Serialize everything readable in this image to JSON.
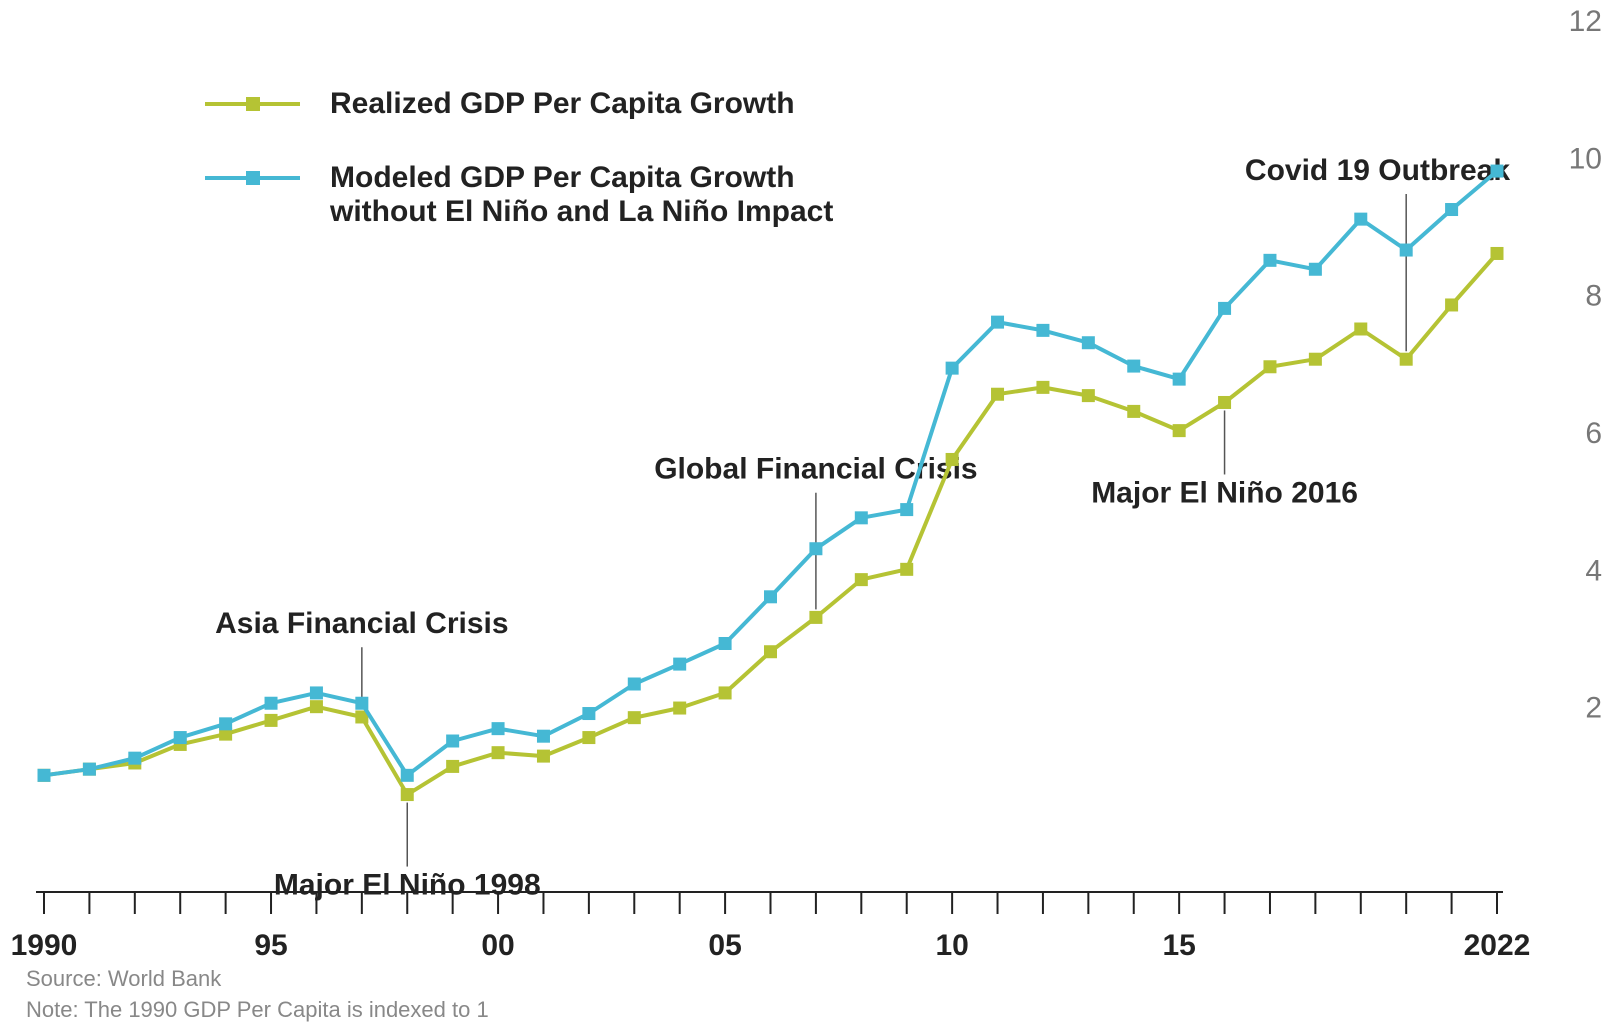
{
  "chart_data": {
    "type": "line",
    "x": [
      1990,
      1991,
      1992,
      1993,
      1994,
      1995,
      1996,
      1997,
      1998,
      1999,
      2000,
      2001,
      2002,
      2003,
      2004,
      2005,
      2006,
      2007,
      2008,
      2009,
      2010,
      2011,
      2012,
      2013,
      2014,
      2015,
      2016,
      2017,
      2018,
      2019,
      2020,
      2021,
      2022
    ],
    "series": [
      {
        "name": "Realized GDP Per Capita Growth",
        "color": "#b5c334",
        "values": [
          1.0,
          1.09,
          1.18,
          1.45,
          1.6,
          1.8,
          2.0,
          1.85,
          0.72,
          1.13,
          1.33,
          1.28,
          1.55,
          1.84,
          1.98,
          2.2,
          2.8,
          3.3,
          3.85,
          4.0,
          5.6,
          6.55,
          6.65,
          6.53,
          6.3,
          6.02,
          6.43,
          6.95,
          7.06,
          7.5,
          7.06,
          7.85,
          8.6
        ]
      },
      {
        "name": "Modeled GDP Per Capita Growth without El Niño and La Niño Impact",
        "color": "#45b8d4",
        "values": [
          1.0,
          1.09,
          1.25,
          1.55,
          1.75,
          2.05,
          2.2,
          2.05,
          1.0,
          1.5,
          1.68,
          1.57,
          1.9,
          2.33,
          2.62,
          2.92,
          3.6,
          4.3,
          4.75,
          4.87,
          6.93,
          7.6,
          7.48,
          7.3,
          6.96,
          6.77,
          7.8,
          8.5,
          8.37,
          9.1,
          8.65,
          9.24,
          9.8
        ]
      }
    ],
    "legend": [
      {
        "label": "Realized GDP Per Capita Growth",
        "color": "#b5c334"
      },
      {
        "label_line1": "Modeled GDP Per Capita Growth",
        "label_line2": "without El Niño and La Niño Impact",
        "color": "#45b8d4"
      }
    ],
    "legend_position": "top-left",
    "ylim": [
      0,
      12
    ],
    "xlim": [
      1990,
      2022
    ],
    "y_ticks": [
      "12",
      "10",
      "8",
      "6",
      "4",
      "2"
    ],
    "x_tick_labels": [
      {
        "year": 1990,
        "label": "1990"
      },
      {
        "year": 1995,
        "label": "95"
      },
      {
        "year": 2000,
        "label": "00"
      },
      {
        "year": 2005,
        "label": "05"
      },
      {
        "year": 2010,
        "label": "10"
      },
      {
        "year": 2015,
        "label": "15"
      },
      {
        "year": 2022,
        "label": "2022"
      }
    ],
    "annotations": [
      {
        "text": "Asia Financial Crisis",
        "year": 1997,
        "side": "above"
      },
      {
        "text": "Major El Niño 1998",
        "year": 1998,
        "side": "below"
      },
      {
        "text": "Global Financial Crisis",
        "year": 2007,
        "side": "above"
      },
      {
        "text": "Major El Niño 2016",
        "year": 2016,
        "side": "below"
      },
      {
        "text": "Covid 19 Outbreak",
        "year": 2020,
        "side": "above"
      }
    ],
    "grid": false
  },
  "footer": {
    "source": "Source: World Bank",
    "note": "Note: The 1990 GDP  Per Capita is indexed to 1"
  }
}
